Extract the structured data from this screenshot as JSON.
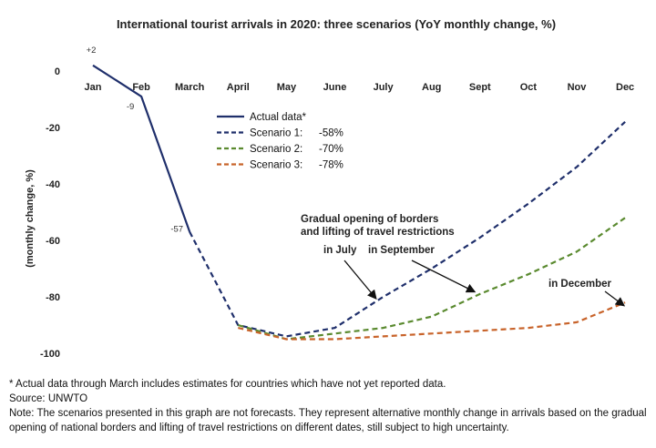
{
  "chart_data": {
    "type": "line",
    "title": "International tourist arrivals in 2020: three scenarios (YoY monthly change, %)",
    "ylabel": "(monthly change, %)",
    "xlabel": "",
    "categories": [
      "Jan",
      "Feb",
      "March",
      "April",
      "May",
      "June",
      "July",
      "Aug",
      "Sept",
      "Oct",
      "Nov",
      "Dec"
    ],
    "ylim": [
      -100,
      0
    ],
    "yticks": [
      0,
      -20,
      -40,
      -60,
      -80,
      -100
    ],
    "grid": false,
    "legend_position": "center",
    "series": [
      {
        "name": "Actual data*",
        "style": "solid",
        "color": "#1f2f6b",
        "values": [
          2,
          -9,
          -57,
          null,
          null,
          null,
          null,
          null,
          null,
          null,
          null,
          null
        ]
      },
      {
        "name": "Scenario 1:",
        "value_label": "-58%",
        "style": "dashed",
        "color": "#1f2f6b",
        "values": [
          null,
          null,
          -57,
          -90,
          -94,
          -91,
          -80,
          -70,
          -59,
          -47,
          -34,
          -18
        ]
      },
      {
        "name": "Scenario 2:",
        "value_label": "-70%",
        "style": "dashed",
        "color": "#5a8a2f",
        "values": [
          null,
          null,
          null,
          -90,
          -95,
          -93,
          -91,
          -87,
          -79,
          -72,
          -64,
          -52
        ]
      },
      {
        "name": "Scenario 3:",
        "value_label": "-78%",
        "style": "dashed",
        "color": "#c8632a",
        "values": [
          null,
          null,
          null,
          -91,
          -95,
          -95,
          -94,
          -93,
          -92,
          -91,
          -89,
          -82
        ]
      }
    ],
    "data_labels": [
      {
        "x": "Jan",
        "y": 2,
        "text": "+2"
      },
      {
        "x": "Feb",
        "y": -9,
        "text": "-9"
      },
      {
        "x": "March",
        "y": -57,
        "text": "-57"
      }
    ],
    "annotations": {
      "heading_line1": "Gradual opening of borders",
      "heading_line2": "and lifting of travel restrictions",
      "in_july": "in July",
      "in_september": "in September",
      "in_december": "in December"
    }
  },
  "notes": {
    "line1": "* Actual data through March includes estimates for countries which have not yet reported data.",
    "line2": "Source: UNWTO",
    "line3": "Note: The scenarios presented in this graph are not forecasts. They represent alternative monthly change in arrivals based on the gradual opening of national borders and lifting of travel restrictions on different dates, still subject to high uncertainty."
  }
}
